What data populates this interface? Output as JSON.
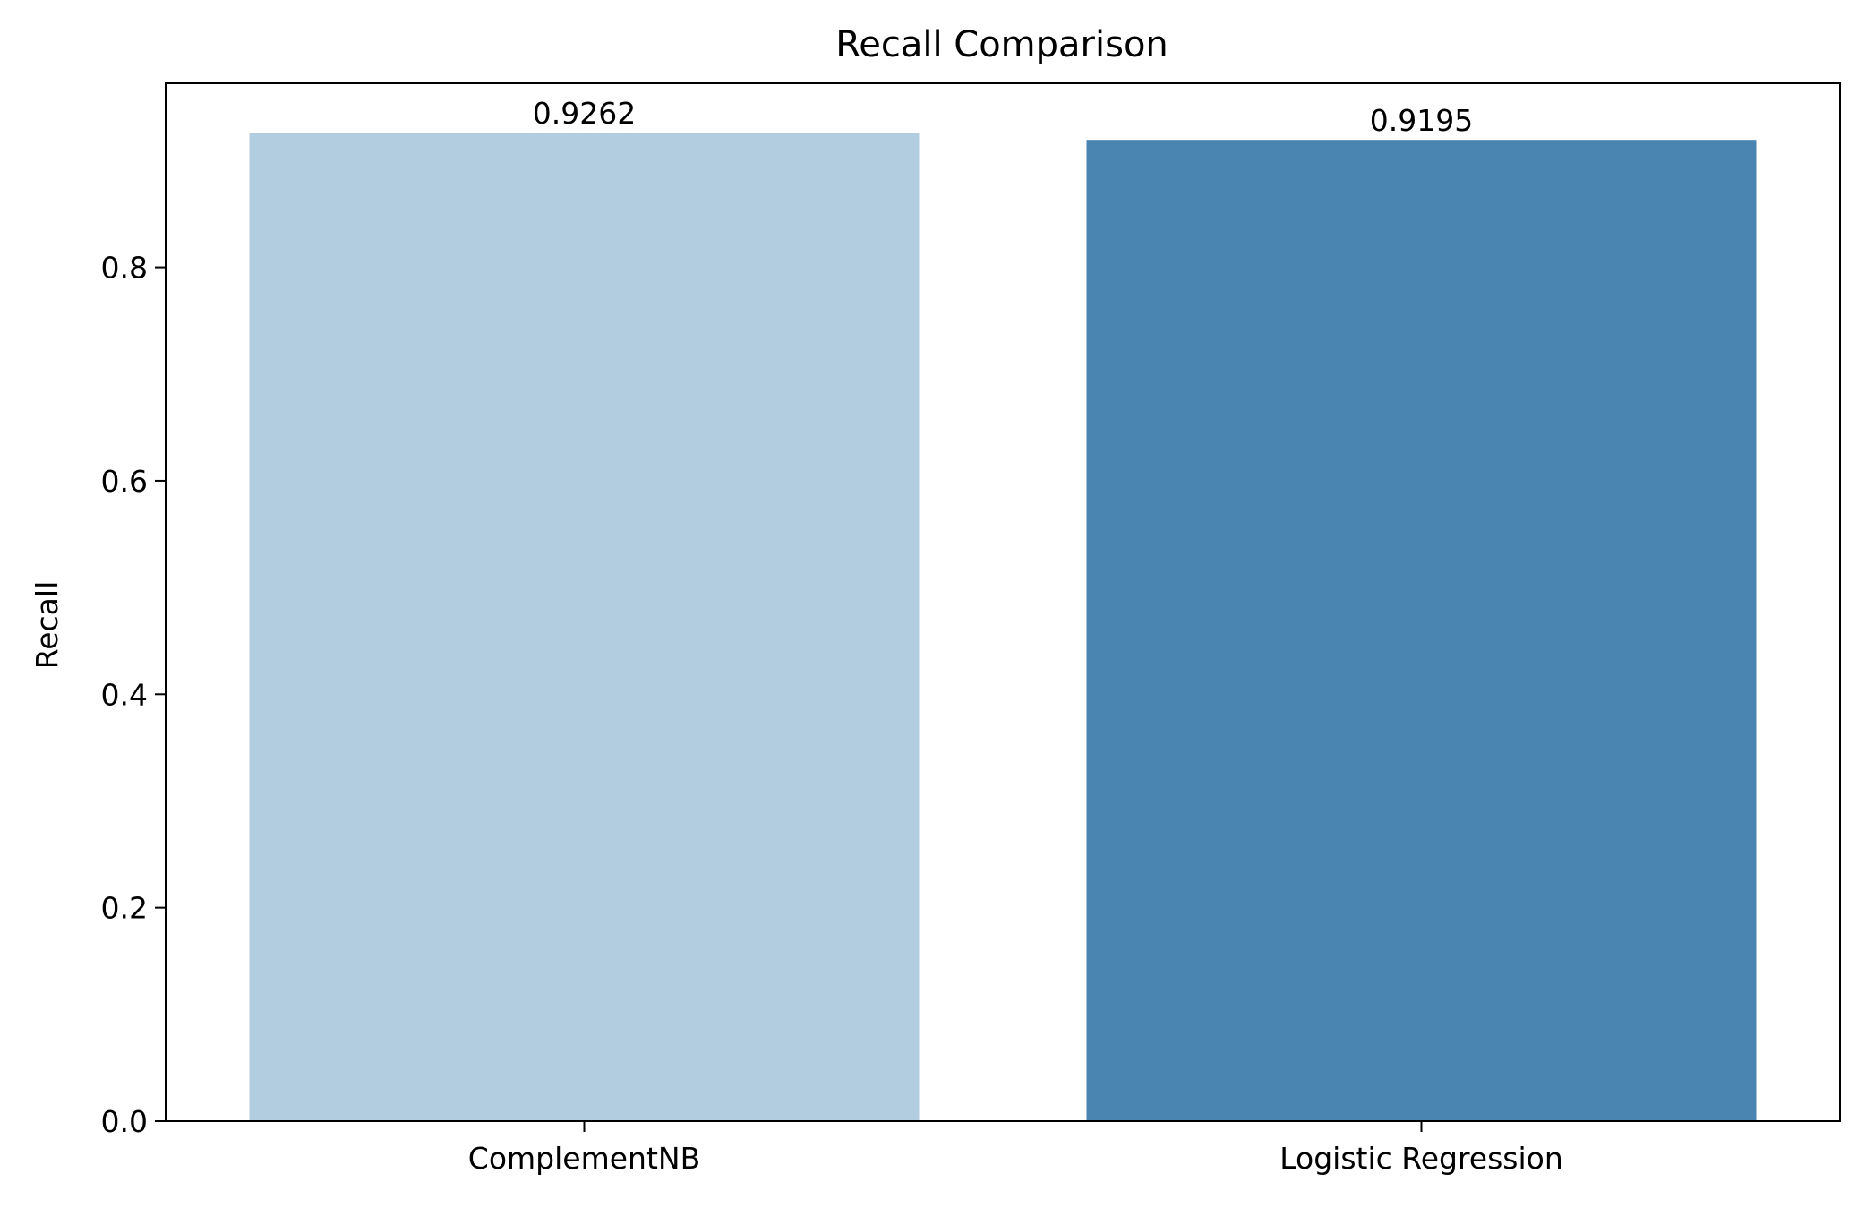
{
  "chart_data": {
    "type": "bar",
    "title": "Recall Comparison",
    "xlabel": "",
    "ylabel": "Recall",
    "categories": [
      "ComplementNB",
      "Logistic Regression"
    ],
    "values": [
      0.9262,
      0.9195
    ],
    "value_labels": [
      "0.9262",
      "0.9195"
    ],
    "colors": [
      "#b3cde0",
      "#4a84b0"
    ],
    "ylim": [
      0,
      0.9725
    ],
    "yticks": [
      0.0,
      0.2,
      0.4,
      0.6,
      0.8
    ],
    "ytick_labels": [
      "0.0",
      "0.2",
      "0.4",
      "0.6",
      "0.8"
    ],
    "grid": false,
    "legend": "none"
  }
}
